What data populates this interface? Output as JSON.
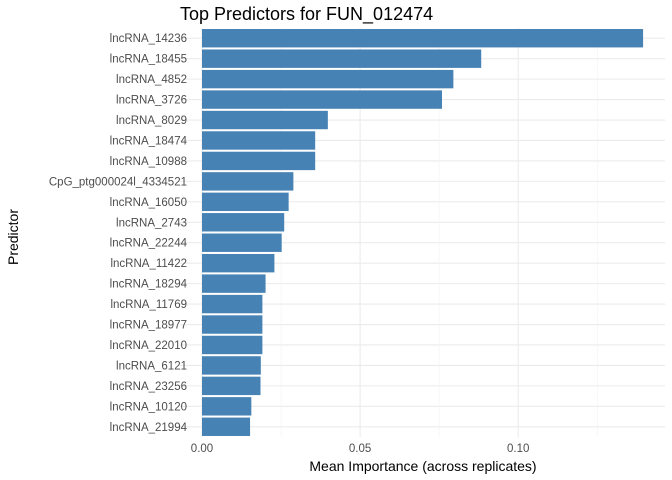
{
  "chart_data": {
    "type": "bar",
    "orientation": "horizontal",
    "title": "Top Predictors for FUN_012474",
    "xlabel": "Mean Importance (across replicates)",
    "ylabel": "Predictor",
    "xlim": [
      0,
      0.14
    ],
    "xticks": [
      0.0,
      0.05,
      0.1
    ],
    "xtick_labels": [
      "0.00",
      "0.05",
      "0.10"
    ],
    "bar_color": "#4682B4",
    "grid": true,
    "categories": [
      "lncRNA_14236",
      "lncRNA_18455",
      "lncRNA_4852",
      "lncRNA_3726",
      "lncRNA_8029",
      "lncRNA_18474",
      "lncRNA_10988",
      "CpG_ptg000024l_4334521",
      "lncRNA_16050",
      "lncRNA_2743",
      "lncRNA_22244",
      "lncRNA_11422",
      "lncRNA_18294",
      "lncRNA_11769",
      "lncRNA_18977",
      "lncRNA_22010",
      "lncRNA_6121",
      "lncRNA_23256",
      "lncRNA_10120",
      "lncRNA_21994"
    ],
    "values": [
      0.1395,
      0.0883,
      0.0795,
      0.0759,
      0.0398,
      0.0358,
      0.0358,
      0.0289,
      0.0274,
      0.026,
      0.0252,
      0.0229,
      0.0201,
      0.0191,
      0.0191,
      0.0191,
      0.0186,
      0.0185,
      0.0156,
      0.0152
    ]
  }
}
